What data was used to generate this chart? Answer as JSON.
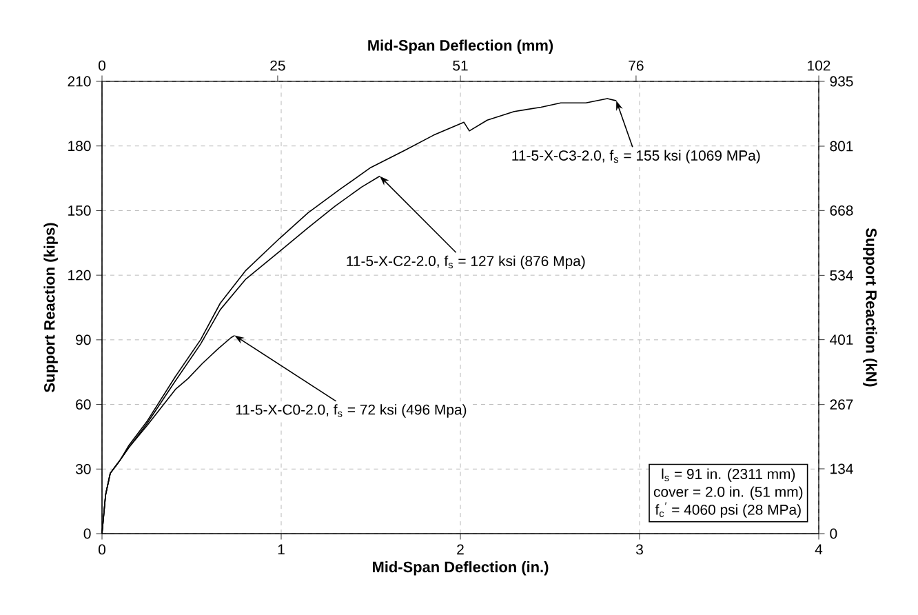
{
  "chart_data": {
    "type": "line",
    "xlabel": "Mid-Span Deflection (in.)",
    "ylabel": "Support Reaction (kips)",
    "x2label": "Mid-Span Deflection (mm)",
    "y2label": "Support Reaction (kN)",
    "xlim": [
      0,
      4
    ],
    "xticks": [
      0,
      1,
      2,
      3,
      4
    ],
    "ylim": [
      0,
      210
    ],
    "yticks": [
      0,
      30,
      60,
      90,
      120,
      150,
      180,
      210
    ],
    "x2lim": [
      0,
      102
    ],
    "x2ticks": [
      0,
      25,
      51,
      76,
      102
    ],
    "y2lim": [
      0,
      935
    ],
    "y2ticks": [
      0,
      134,
      267,
      401,
      534,
      668,
      801,
      935
    ],
    "grid": true,
    "line_style": "solid",
    "marker": "none",
    "series": [
      {
        "color": "#000000",
        "x": [
          0,
          0.02,
          0.046,
          0.1,
          0.15,
          0.25,
          0.41,
          0.55,
          0.66,
          0.8,
          0.99,
          1.15,
          1.33,
          1.5,
          1.69,
          1.85,
          2.02,
          2.05,
          2.15,
          2.3,
          2.45,
          2.56,
          2.7,
          2.82,
          2.87
        ],
        "values": [
          0,
          18,
          28,
          34,
          41,
          52,
          73,
          90,
          107,
          122,
          137,
          149,
          160,
          170,
          178,
          185,
          191,
          187,
          192,
          196,
          198,
          200,
          200,
          202,
          201
        ]
      },
      {
        "color": "#000000",
        "x": [
          0,
          0.02,
          0.046,
          0.1,
          0.15,
          0.25,
          0.41,
          0.55,
          0.66,
          0.8,
          0.99,
          1.15,
          1.3,
          1.45,
          1.55
        ],
        "values": [
          0,
          18,
          28,
          34,
          40,
          51,
          71,
          88,
          104,
          118,
          131,
          142,
          152,
          161,
          166
        ]
      },
      {
        "color": "#000000",
        "x": [
          0,
          0.02,
          0.046,
          0.1,
          0.15,
          0.25,
          0.41,
          0.48,
          0.56,
          0.65,
          0.72,
          0.74
        ],
        "values": [
          0,
          18,
          28,
          34,
          40,
          50,
          67,
          72,
          79,
          86,
          91,
          92
        ]
      }
    ],
    "annotations": [
      {
        "text": "11-5-X-C3-2.0, f$_{s}$ = 155 ksi (1069 MPa)",
        "x": 2.87,
        "y": 201
      },
      {
        "text": "11-5-X-C2-2.0, f$_{s}$ = 127 ksi (876 Mpa)",
        "x": 1.55,
        "y": 166
      },
      {
        "text": "11-5-X-C0-2.0, f$_{s}$ = 72 ksi (496 Mpa)",
        "x": 0.74,
        "y": 92
      },
      "l$_{s}$ = 91 in. (2311 mm)",
      "cover = 2.0 in. (51 mm)",
      "f$_{c}$$^{′}$ = 4060 psi (28 MPa)"
    ]
  }
}
